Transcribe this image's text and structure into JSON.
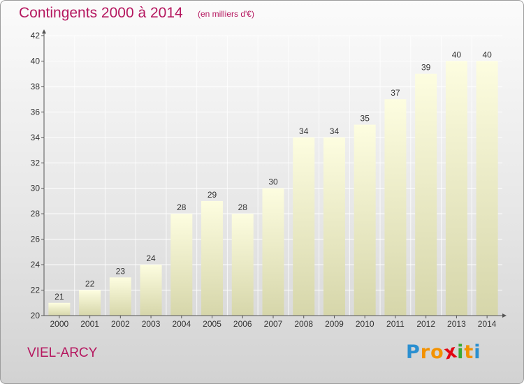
{
  "header": {
    "title": "Contingents 2000 à 2014",
    "subtitle": "(en milliers d'€)"
  },
  "footer": {
    "commune": "VIEL-ARCY",
    "logo_letters": [
      "P",
      "r",
      "o",
      "x",
      "i",
      "t",
      "i"
    ],
    "logo_colors": [
      "#2a8fd0",
      "#f39200",
      "#f39200",
      "#e30613",
      "#3aa935",
      "#f39200",
      "#2a8fd0"
    ]
  },
  "colors": {
    "title": "#b5175f",
    "bar_top": "#fdfde0",
    "bar_bottom": "#d6d6aa",
    "axis": "#555555",
    "grid": "#ffffff"
  },
  "chart_data": {
    "type": "bar",
    "title": "Contingents 2000 à 2014",
    "subtitle": "(en milliers d'€)",
    "categories": [
      "2000",
      "2001",
      "2002",
      "2003",
      "2004",
      "2005",
      "2006",
      "2007",
      "2008",
      "2009",
      "2010",
      "2011",
      "2012",
      "2013",
      "2014"
    ],
    "values": [
      21,
      22,
      23,
      24,
      28,
      29,
      28,
      30,
      34,
      34,
      35,
      37,
      39,
      40,
      40
    ],
    "ylim": [
      20,
      42
    ],
    "yticks": [
      20,
      22,
      24,
      26,
      28,
      30,
      32,
      34,
      36,
      38,
      40,
      42
    ],
    "grid": true,
    "data_labels": true
  }
}
